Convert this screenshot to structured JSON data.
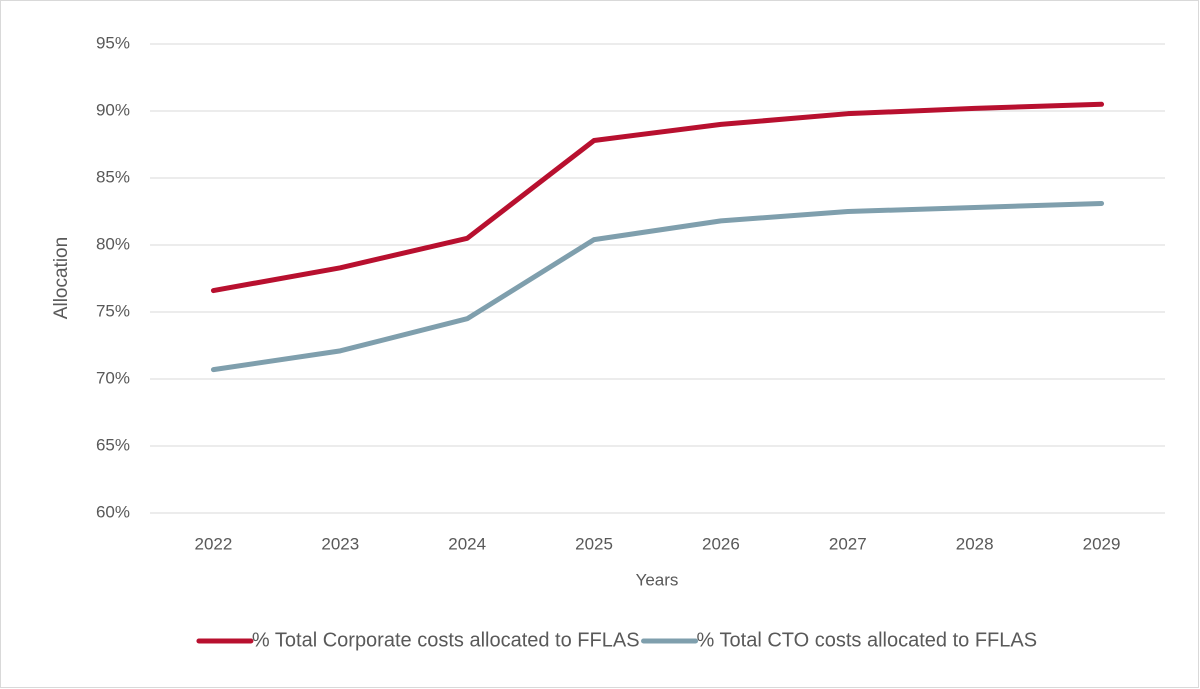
{
  "chart_data": {
    "type": "line",
    "xlabel": "Years",
    "ylabel": "Allocation",
    "categories": [
      "2022",
      "2023",
      "2024",
      "2025",
      "2026",
      "2027",
      "2028",
      "2029"
    ],
    "series": [
      {
        "name": "% Total Corporate costs allocated to FFLAS",
        "color": "#b8102f",
        "values": [
          76.6,
          78.3,
          80.5,
          87.8,
          89.0,
          89.8,
          90.2,
          90.5
        ]
      },
      {
        "name": "% Total CTO costs allocated to FFLAS",
        "color": "#7f9fad",
        "values": [
          70.7,
          72.1,
          74.5,
          80.4,
          81.8,
          82.5,
          82.8,
          83.1
        ]
      }
    ],
    "ylim": [
      60,
      95
    ],
    "yticks": [
      {
        "value": 60,
        "label": "60%"
      },
      {
        "value": 65,
        "label": "65%"
      },
      {
        "value": 70,
        "label": "70%"
      },
      {
        "value": 75,
        "label": "75%"
      },
      {
        "value": 80,
        "label": "80%"
      },
      {
        "value": 85,
        "label": "85%"
      },
      {
        "value": 90,
        "label": "90%"
      },
      {
        "value": 95,
        "label": "95%"
      }
    ],
    "grid": true,
    "legend": "bottom"
  }
}
